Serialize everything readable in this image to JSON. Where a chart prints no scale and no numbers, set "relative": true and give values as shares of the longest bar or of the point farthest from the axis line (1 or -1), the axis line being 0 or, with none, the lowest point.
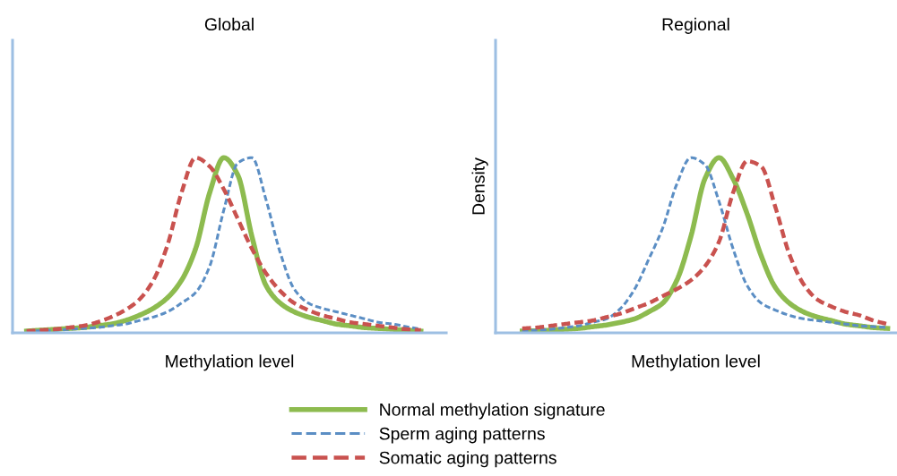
{
  "chart_data": [
    {
      "type": "line",
      "title": "Global",
      "xlabel": "Methylation level",
      "relative": true,
      "legend": "bottom",
      "grid": false,
      "categories": [
        null,
        null,
        null,
        null,
        null,
        null,
        null,
        null,
        null,
        null,
        null,
        null,
        null,
        null,
        null,
        null,
        null,
        null,
        null,
        null,
        null,
        null,
        null,
        null,
        null,
        null,
        null,
        null,
        null
      ],
      "series": [
        {
          "name": "Normal methylation signature",
          "color": "#8dbb4f",
          "line_style": "solid",
          "values": [
            0.01,
            0.015,
            0.02,
            0.025,
            0.03,
            0.04,
            0.05,
            0.07,
            0.1,
            0.14,
            0.2,
            0.3,
            0.48,
            0.8,
            1.0,
            0.9,
            0.55,
            0.27,
            0.17,
            0.12,
            0.09,
            0.07,
            0.05,
            0.04,
            0.03,
            0.025,
            0.02,
            0.015,
            0.01
          ]
        },
        {
          "name": "Sperm aging patterns",
          "color": "#5b8ec4",
          "line_style": "dashed",
          "values": [
            0.01,
            0.012,
            0.015,
            0.02,
            0.025,
            0.03,
            0.04,
            0.05,
            0.07,
            0.09,
            0.12,
            0.17,
            0.23,
            0.38,
            0.7,
            0.97,
            1.0,
            0.76,
            0.46,
            0.25,
            0.17,
            0.14,
            0.12,
            0.1,
            0.08,
            0.06,
            0.05,
            0.035,
            0.02
          ]
        },
        {
          "name": "Somatic aging patterns",
          "color": "#c9524f",
          "line_style": "dashed",
          "values": [
            0.01,
            0.015,
            0.02,
            0.03,
            0.04,
            0.06,
            0.09,
            0.13,
            0.19,
            0.3,
            0.5,
            0.8,
            1.0,
            0.95,
            0.82,
            0.65,
            0.48,
            0.34,
            0.24,
            0.17,
            0.13,
            0.1,
            0.08,
            0.06,
            0.05,
            0.04,
            0.03,
            0.02,
            0.015
          ]
        }
      ]
    },
    {
      "type": "line",
      "title": "Regional",
      "xlabel": "Methylation level",
      "ylabel": "Density",
      "relative": true,
      "grid": false,
      "categories": [
        null,
        null,
        null,
        null,
        null,
        null,
        null,
        null,
        null,
        null,
        null,
        null,
        null,
        null,
        null,
        null,
        null,
        null,
        null,
        null,
        null,
        null,
        null,
        null,
        null,
        null,
        null
      ],
      "series": [
        {
          "name": "Normal methylation signature",
          "color": "#8dbb4f",
          "line_style": "solid",
          "values": [
            0.01,
            0.012,
            0.015,
            0.02,
            0.025,
            0.035,
            0.045,
            0.06,
            0.08,
            0.12,
            0.17,
            0.3,
            0.55,
            0.88,
            1.0,
            0.88,
            0.68,
            0.44,
            0.26,
            0.17,
            0.12,
            0.09,
            0.07,
            0.05,
            0.04,
            0.03,
            0.025
          ]
        },
        {
          "name": "Sperm aging patterns",
          "color": "#5b8ec4",
          "line_style": "dashed",
          "values": [
            0.01,
            0.015,
            0.02,
            0.03,
            0.04,
            0.06,
            0.08,
            0.14,
            0.25,
            0.42,
            0.6,
            0.85,
            1.0,
            0.96,
            0.75,
            0.48,
            0.27,
            0.17,
            0.13,
            0.1,
            0.08,
            0.07,
            0.06,
            0.05,
            0.04,
            0.035,
            0.03
          ]
        },
        {
          "name": "Somatic aging patterns",
          "color": "#c9524f",
          "line_style": "dashed",
          "values": [
            0.025,
            0.03,
            0.04,
            0.05,
            0.06,
            0.07,
            0.09,
            0.11,
            0.14,
            0.17,
            0.21,
            0.25,
            0.3,
            0.38,
            0.52,
            0.8,
            0.98,
            0.95,
            0.72,
            0.45,
            0.28,
            0.19,
            0.15,
            0.12,
            0.1,
            0.07,
            0.05
          ]
        }
      ]
    }
  ]
}
